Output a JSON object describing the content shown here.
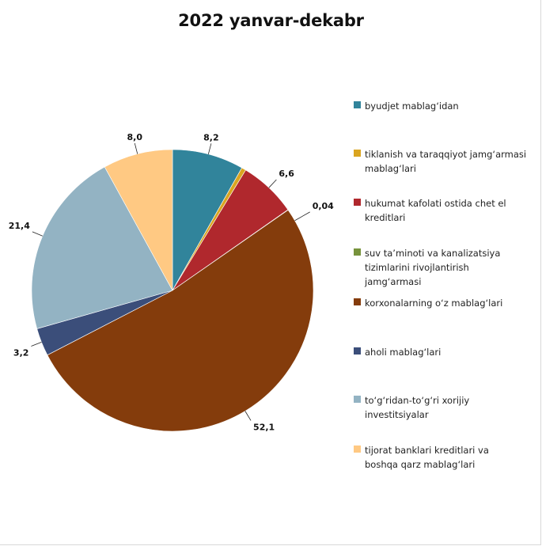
{
  "chart_data": {
    "type": "pie",
    "title": "2022 yanvar-dekabr",
    "slices": [
      {
        "label": "byudjet mablag‘idan",
        "value": 8.2,
        "value_label": "8,2",
        "color": "#31849B"
      },
      {
        "label": "tiklanish va taraqqiyot jamg‘armasi mablag‘lari",
        "value": 0.5,
        "value_label": "",
        "color": "#DAA520"
      },
      {
        "label": "hukumat kafolati ostida chet el kreditlari",
        "value": 6.6,
        "value_label": "6,6",
        "color": "#B0282D"
      },
      {
        "label": "suv ta’minoti va kanalizatsiya tizimlarini rivojlantirish jamg‘armasi",
        "value": 0.04,
        "value_label": "0,04",
        "color": "#77933C"
      },
      {
        "label": "korxonalarning o‘z mablag‘lari",
        "value": 52.1,
        "value_label": "52,1",
        "color": "#843C0C"
      },
      {
        "label": "aholi mablag‘lari",
        "value": 3.2,
        "value_label": "3,2",
        "color": "#3B4E7A"
      },
      {
        "label": "to‘g‘ridan-to‘g‘ri xorijiy investitsiyalar",
        "value": 21.4,
        "value_label": "21,4",
        "color": "#93B3C3"
      },
      {
        "label": "tijorat banklari kreditlari va boshqa qarz mablag‘lari",
        "value": 8.0,
        "value_label": "8,0",
        "color": "#FFC983"
      }
    ],
    "legend_position": "right",
    "start_angle": "12 o'clock",
    "direction": "clockwise"
  },
  "legend": {
    "items": [
      {
        "lines": [
          "byudjet mablag‘idan"
        ]
      },
      {
        "lines": [
          "tiklanish va taraqqiyot jamg‘armasi",
          "mablag‘lari"
        ]
      },
      {
        "lines": [
          "hukumat kafolati ostida chet el",
          "kreditlari"
        ]
      },
      {
        "lines": [
          "suv ta’minoti  va kanalizatsiya",
          "tizimlarini rivojlantirish",
          "jamg‘armasi"
        ]
      },
      {
        "lines": [
          "korxonalarning o‘z mablag‘lari"
        ]
      },
      {
        "lines": [
          "aholi mablag‘lari"
        ]
      },
      {
        "lines": [
          "to‘g‘ridan-to‘g‘ri  xorijiy",
          "investitsiyalar"
        ]
      },
      {
        "lines": [
          "tijorat banklari kreditlari va",
          "boshqa qarz mablag‘lari"
        ]
      }
    ]
  }
}
